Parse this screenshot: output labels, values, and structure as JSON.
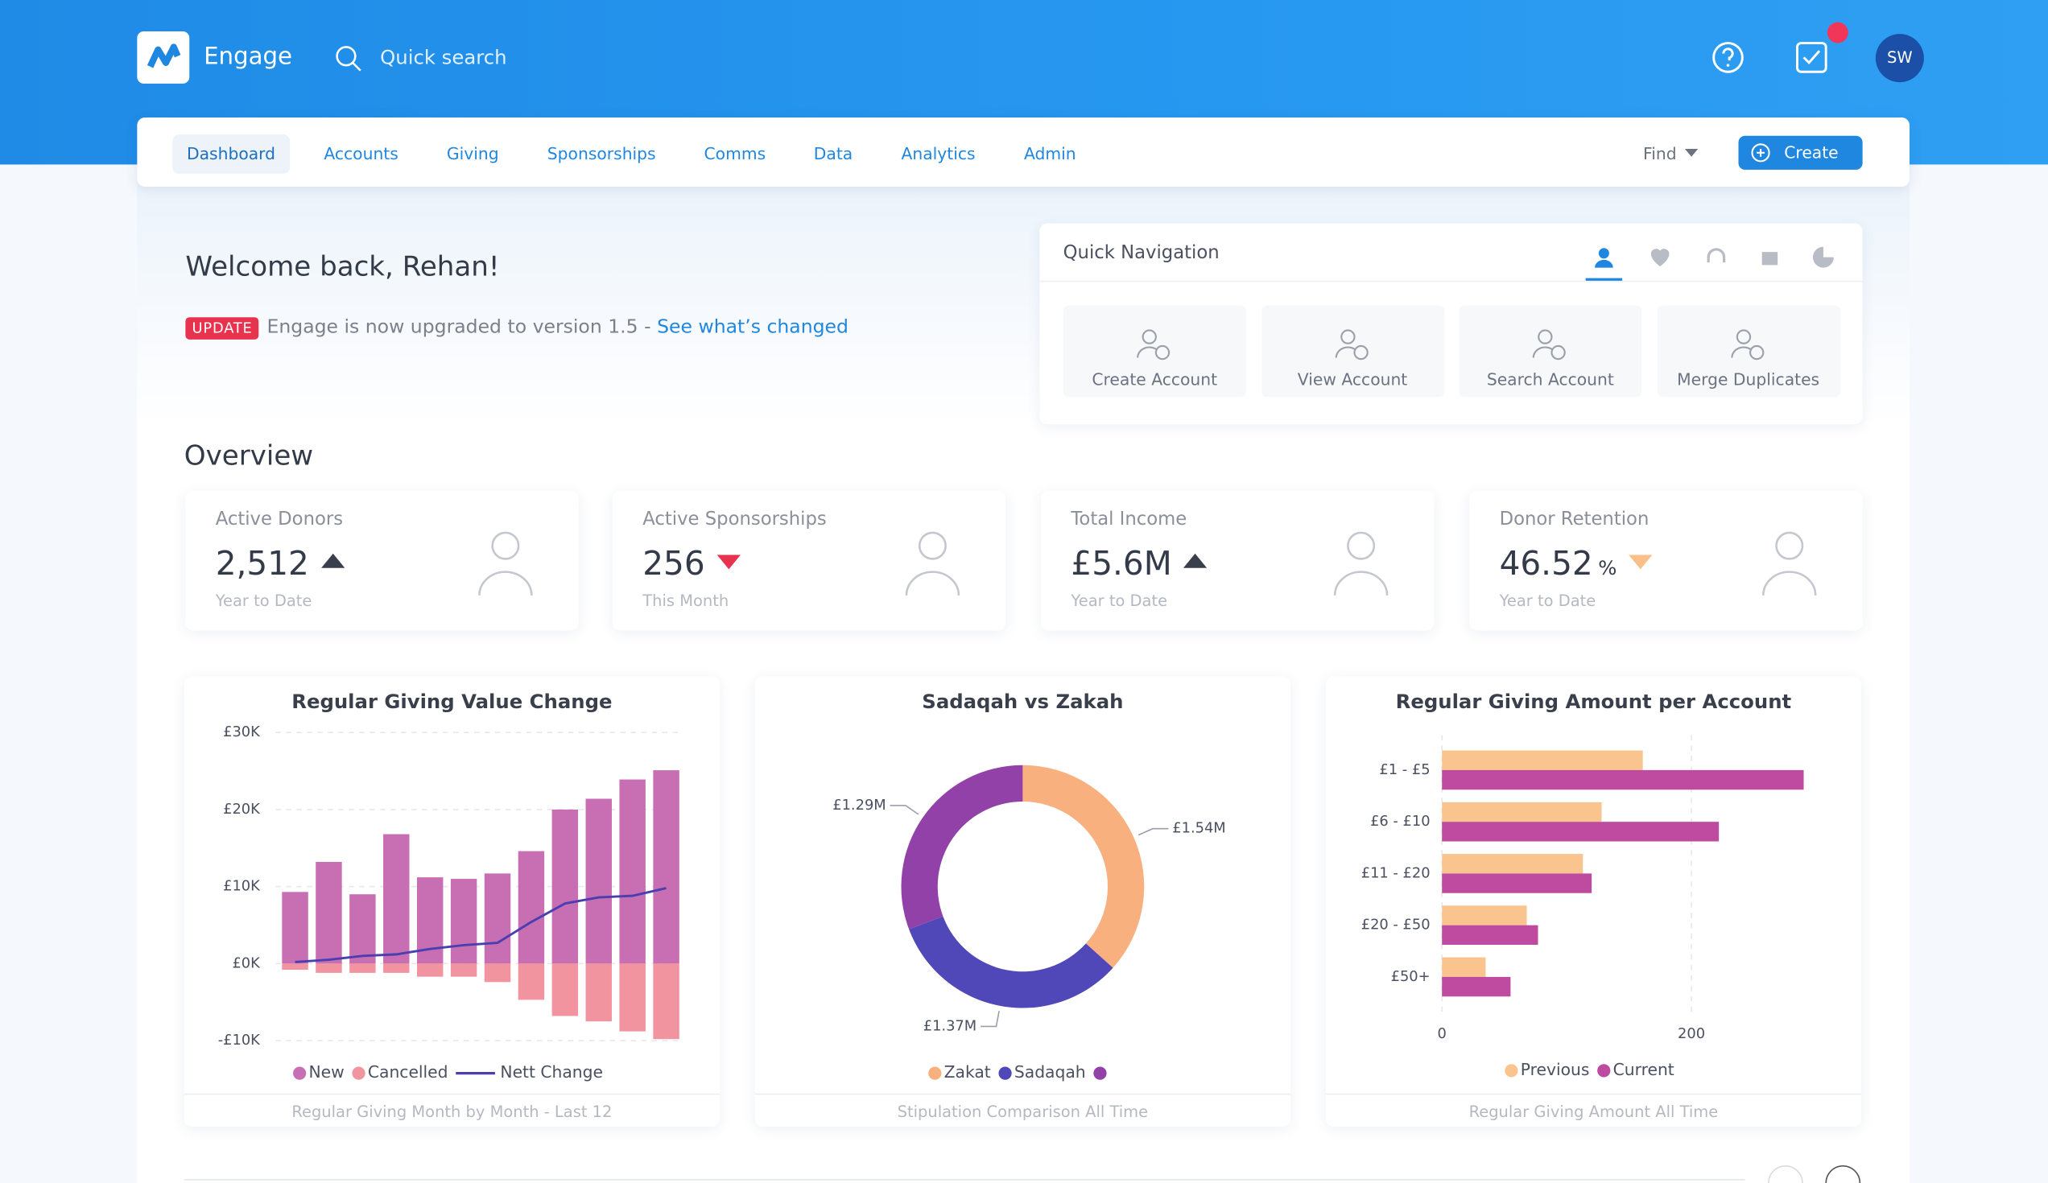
{
  "header": {
    "brand": "Engage",
    "search": "Quick search",
    "avatar": "SW"
  },
  "nav": {
    "items": [
      "Dashboard",
      "Accounts",
      "Giving",
      "Sponsorships",
      "Comms",
      "Data",
      "Analytics",
      "Admin"
    ],
    "find": "Find",
    "create": "Create"
  },
  "welcome": {
    "title": "Welcome back, Rehan!",
    "badge": "UPDATE",
    "message": "Engage is now upgraded to version 1.5 - ",
    "link": "See what’s changed"
  },
  "quick_nav": {
    "title": "Quick Navigation",
    "actions": [
      "Create Account",
      "View Account",
      "Search Account",
      "Merge Duplicates"
    ]
  },
  "overview": {
    "title": "Overview",
    "cards": [
      {
        "label": "Active Donors",
        "value": "2,512",
        "note": "Year to Date",
        "trend": "up",
        "trend_color": "#3a3f4c"
      },
      {
        "label": "Active Sponsorships",
        "value": "256",
        "note": "This Month",
        "trend": "down",
        "trend_color": "#e8334f"
      },
      {
        "label": "Total Income",
        "value": "£5.6M",
        "note": "Year to Date",
        "trend": "up",
        "trend_color": "#3a3f4c"
      },
      {
        "label": "Donor Retention",
        "value": "46.52",
        "unit": "%",
        "note": "Year to Date",
        "trend": "down",
        "trend_color": "#f9c08a"
      }
    ]
  },
  "chart_data": [
    {
      "type": "bar",
      "title": "Regular Giving Value Change",
      "footer": "Regular Giving Month by Month - Last 12",
      "categories": [
        null,
        null,
        null,
        null,
        null,
        null,
        null,
        null,
        null,
        null,
        null,
        null
      ],
      "ylim": [
        -10000,
        30000
      ],
      "yticks": [
        {
          "value": 30000,
          "label": "£30K"
        },
        {
          "value": 20000,
          "label": "£20K"
        },
        {
          "value": 10000,
          "label": "£10K"
        },
        {
          "value": 0,
          "label": "£0K"
        },
        {
          "value": -10000,
          "label": "-£10K"
        }
      ],
      "grid": true,
      "series": [
        {
          "name": "New",
          "color": "#c86fb4",
          "values": [
            9300,
            13200,
            9000,
            16800,
            11200,
            11000,
            11700,
            14600,
            20000,
            21400,
            23900,
            25100
          ]
        },
        {
          "name": "Cancelled",
          "color": "#f2949f",
          "values": [
            -800,
            -1200,
            -1200,
            -1200,
            -1700,
            -1700,
            -2400,
            -4700,
            -6800,
            -7500,
            -8800,
            -9800
          ]
        },
        {
          "name": "Nett Change",
          "color": "#4b3fb0",
          "type": "line",
          "values": [
            200,
            500,
            1000,
            1200,
            1900,
            2400,
            2700,
            5400,
            7800,
            8600,
            8800,
            9800
          ]
        }
      ]
    },
    {
      "type": "pie",
      "title": "Sadaqah vs Zakah",
      "footer": "Stipulation Comparison All Time",
      "hole": 0.7,
      "series": [
        {
          "name": "Zakat",
          "color": "#f9b07f",
          "values": [
            1.54
          ],
          "value_labels": [
            "£1.54M"
          ]
        },
        {
          "name": "Sadaqah",
          "color": "#5048b8",
          "values": [
            1.37
          ],
          "value_labels": [
            "£1.37M"
          ]
        },
        {
          "name": null,
          "color": "#9141a8",
          "values": [
            1.29
          ],
          "value_labels": [
            "£1.29M"
          ]
        }
      ]
    },
    {
      "type": "bar",
      "orientation": "horizontal",
      "title": "Regular Giving Amount per Account",
      "footer": "Regular Giving Amount All Time",
      "categories": [
        "£1 - £5",
        "£6 - £10",
        "£11 - £20",
        "£20 - £50",
        "£50+"
      ],
      "xlim": [
        0,
        300
      ],
      "xticks": [
        0,
        200
      ],
      "grid": true,
      "series": [
        {
          "name": "Previous",
          "color": "#fac48f",
          "values": [
            161,
            128,
            113,
            68,
            35
          ]
        },
        {
          "name": "Current",
          "color": "#bf4ba0",
          "values": [
            290,
            222,
            120,
            77,
            55
          ]
        }
      ]
    }
  ]
}
